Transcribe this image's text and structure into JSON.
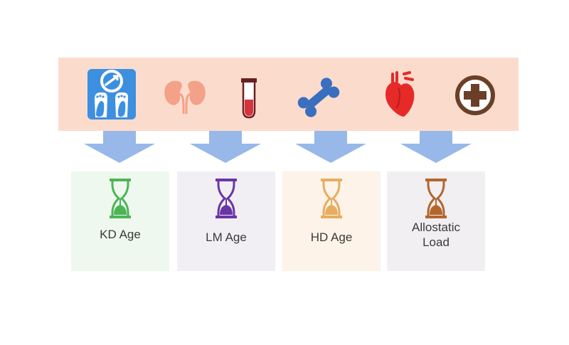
{
  "icons": [
    {
      "name": "scale-icon",
      "color": "#3d8fe0"
    },
    {
      "name": "kidneys-icon",
      "color": "#f3a188"
    },
    {
      "name": "test-tube-icon",
      "color": "#d6343c"
    },
    {
      "name": "bone-icon",
      "color": "#3a6fc0"
    },
    {
      "name": "heart-icon",
      "color": "#e52a28"
    },
    {
      "name": "medical-cross-icon",
      "color": "#6b3f27"
    }
  ],
  "arrow_color": "#97b8e8",
  "outputs": [
    {
      "label": "KD Age",
      "hourglass_color": "#4cb556",
      "bg": "#eef8ef"
    },
    {
      "label": "LM Age",
      "hourglass_color": "#6b35a6",
      "bg": "#f1eff4"
    },
    {
      "label": "HD Age",
      "hourglass_color": "#e7ad61",
      "bg": "#fdf3e8"
    },
    {
      "label": "Allostatic\nLoad",
      "hourglass_color": "#b4652c",
      "bg": "#f1eff2"
    }
  ]
}
